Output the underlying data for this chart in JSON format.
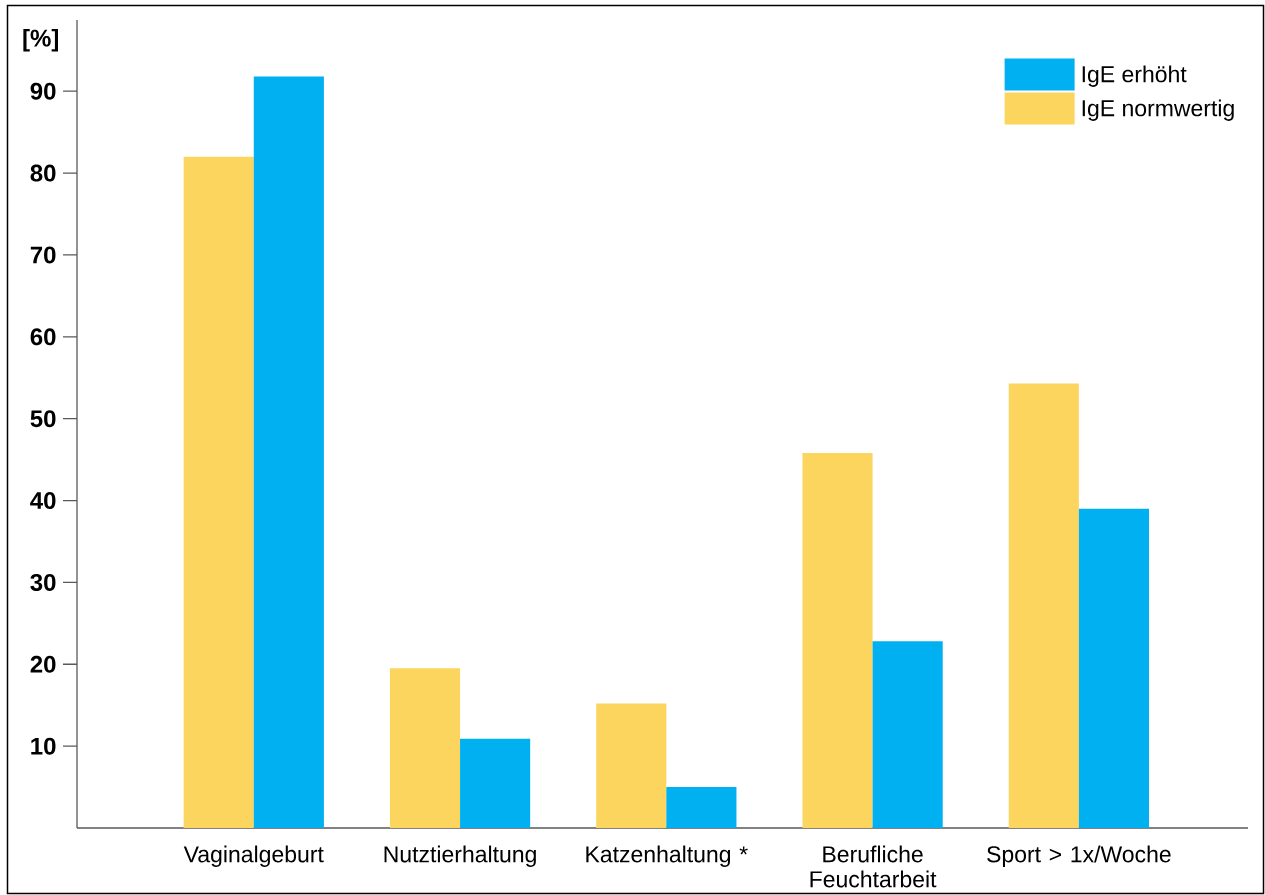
{
  "chart_data": {
    "type": "bar",
    "ylabel": "[%]",
    "categories": [
      "Vaginalgeburt",
      "Nutztierhaltung",
      "Katzenhaltung *",
      "Berufliche Feuchtarbeit",
      "Sport > 1x/Woche"
    ],
    "series": [
      {
        "name": "IgE normwertig",
        "color": "#fcd55f",
        "values": [
          82,
          19.5,
          15.2,
          45.8,
          54.3
        ]
      },
      {
        "name": "IgE erhöht",
        "color": "#00b0f0",
        "values": [
          91.8,
          10.9,
          5,
          22.8,
          39
        ]
      }
    ],
    "ylim": [
      0,
      98.7
    ],
    "yticks": [
      10,
      20,
      30,
      40,
      50,
      60,
      70,
      80,
      90
    ],
    "legend": "top right"
  }
}
